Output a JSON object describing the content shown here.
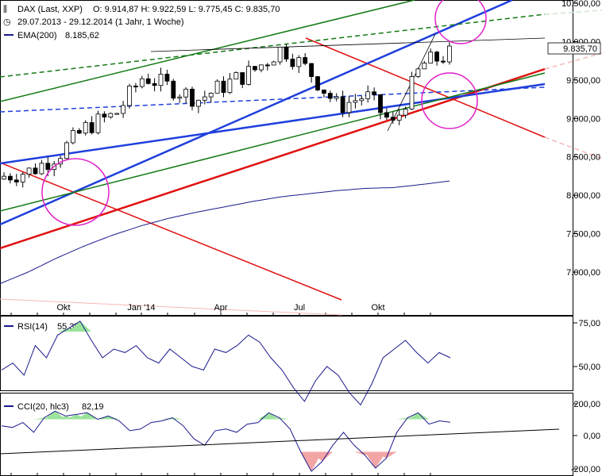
{
  "header": {
    "instrument": "DAX (Last, XXP)",
    "ohlc": "O: 9.914,87  H: 9.922,59  L: 9.775,45  C: 9.835,70",
    "period": "29.07.2013 - 29.12.2014 (1 Jahr, 1 Woche)",
    "ema_label": "EMA(200)",
    "ema_value": "8.185,62",
    "last_price_label": "9.835,70"
  },
  "rsi": {
    "label": "RSI(14)",
    "value": "55,35"
  },
  "cci": {
    "label": "CCI(20, hlc3)",
    "value": "82,19"
  },
  "colors": {
    "up": "#ffffff",
    "down": "#000000",
    "ema": "#1a1a8c",
    "rsi": "#1a1a8c",
    "trend_red": "#e01010",
    "trend_blue": "#1f3fdd",
    "trend_green": "#137a13",
    "circle": "#e020c8",
    "fill_green": "#9be39b",
    "fill_red": "#f3a5a5"
  },
  "chart_data": [
    {
      "type": "candlestick",
      "x": [
        "2013-08",
        "2013-09",
        "2013-10",
        "2013-11",
        "2013-12",
        "2014-01",
        "2014-02",
        "2014-03",
        "2014-04",
        "2014-05",
        "2014-06",
        "2014-07",
        "2014-08",
        "2014-09",
        "2014-10",
        "2014-11",
        "2014-12"
      ],
      "x_tick_labels": [
        "Okt",
        "Jan '14",
        "Apr",
        "Jul",
        "Okt"
      ],
      "y_tick_labels": [
        "10.500,00",
        "10.000,00",
        "9.500,00",
        "9.000,00",
        "8.500,00",
        "8.000,00",
        "7.500,00",
        "7.000,00"
      ],
      "ylim": [
        6600,
        10520
      ],
      "series": [
        {
          "name": "DAX",
          "close": [
            8250,
            8320,
            8550,
            8900,
            9050,
            9550,
            9400,
            9250,
            9450,
            9630,
            9920,
            9600,
            9150,
            9300,
            8900,
            9700,
            9836
          ]
        },
        {
          "name": "EMA(200)",
          "values": [
            6850,
            7000,
            7180,
            7340,
            7480,
            7600,
            7700,
            7780,
            7850,
            7920,
            7980,
            8020,
            8060,
            8090,
            8100,
            8140,
            8186
          ]
        }
      ],
      "grid": false
    },
    {
      "type": "line",
      "title": "RSI(14)",
      "y_tick_labels": [
        "75,00",
        "50,00"
      ],
      "ylim": [
        20,
        80
      ],
      "series": [
        {
          "name": "RSI(14)",
          "values": [
            48,
            52,
            45,
            62,
            55,
            68,
            72,
            76,
            65,
            55,
            60,
            58,
            62,
            55,
            52,
            60,
            55,
            50,
            48,
            60,
            58,
            62,
            68,
            64,
            55,
            48,
            38,
            30,
            42,
            50,
            45,
            35,
            28,
            40,
            55,
            60,
            65,
            58,
            52,
            58,
            55
          ]
        }
      ]
    },
    {
      "type": "line",
      "title": "CCI(20, hlc3)",
      "y_tick_labels": [
        "200,00",
        "0,00",
        "-200,00"
      ],
      "ylim": [
        -240,
        230
      ],
      "series": [
        {
          "name": "CCI(20, hlc3)",
          "values": [
            60,
            50,
            80,
            20,
            110,
            150,
            120,
            130,
            140,
            100,
            120,
            90,
            30,
            40,
            80,
            90,
            110,
            60,
            -20,
            -60,
            30,
            40,
            20,
            70,
            80,
            140,
            110,
            40,
            -100,
            -220,
            -160,
            -60,
            20,
            -60,
            -120,
            -200,
            -140,
            20,
            110,
            140,
            70,
            90,
            82
          ]
        }
      ]
    }
  ]
}
